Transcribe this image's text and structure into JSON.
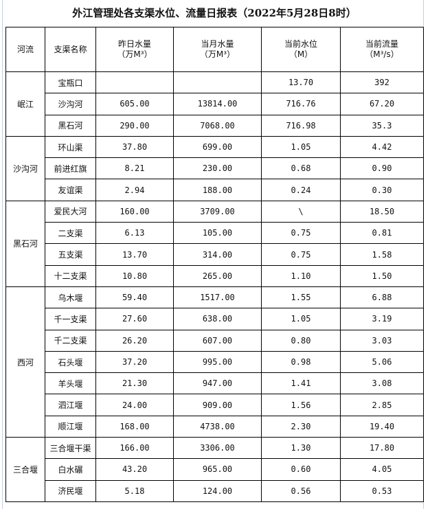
{
  "title": "外江管理处各支渠水位、流量日报表（2022年5月28日8时）",
  "headers": [
    {
      "line1": "河流",
      "line2": ""
    },
    {
      "line1": "支渠名称",
      "line2": ""
    },
    {
      "line1": "昨日水量",
      "line2": "（万M³）"
    },
    {
      "line1": "当月水量",
      "line2": "（万M³）"
    },
    {
      "line1": "当前水位",
      "line2": "（M）"
    },
    {
      "line1": "当前流量",
      "line2": "（M³/s）"
    }
  ],
  "groups": [
    {
      "river": "岷江",
      "rows": [
        [
          "宝瓶口",
          "",
          "",
          "13.70",
          "392"
        ],
        [
          "沙沟河",
          "605.00",
          "13814.00",
          "716.76",
          "67.20"
        ],
        [
          "黑石河",
          "290.00",
          "7068.00",
          "716.98",
          "35.3"
        ]
      ]
    },
    {
      "river": "沙沟河",
      "rows": [
        [
          "环山渠",
          "37.80",
          "699.00",
          "1.05",
          "4.42"
        ],
        [
          "前进红旗",
          "8.21",
          "230.00",
          "0.68",
          "0.90"
        ],
        [
          "友谊渠",
          "2.94",
          "188.00",
          "0.24",
          "0.30"
        ]
      ]
    },
    {
      "river": "黑石河",
      "rows": [
        [
          "爱民大河",
          "160.00",
          "3709.00",
          "\\",
          "18.50"
        ],
        [
          "二支渠",
          "6.13",
          "105.00",
          "0.75",
          "0.81"
        ],
        [
          "五支渠",
          "13.70",
          "314.00",
          "0.75",
          "1.58"
        ],
        [
          "十二支渠",
          "10.80",
          "265.00",
          "1.10",
          "1.50"
        ]
      ]
    },
    {
      "river": "西河",
      "rows": [
        [
          "乌木堰",
          "59.40",
          "1517.00",
          "1.55",
          "6.88"
        ],
        [
          "千一支渠",
          "27.60",
          "638.00",
          "1.05",
          "3.19"
        ],
        [
          "千二支渠",
          "26.20",
          "607.00",
          "0.80",
          "3.03"
        ],
        [
          "石头堰",
          "37.20",
          "995.00",
          "0.98",
          "5.06"
        ],
        [
          "羊头堰",
          "21.30",
          "947.00",
          "1.41",
          "3.08"
        ],
        [
          "泗江堰",
          "24.00",
          "909.00",
          "1.56",
          "2.85"
        ],
        [
          "顺江堰",
          "168.00",
          "4738.00",
          "2.30",
          "19.40"
        ]
      ]
    },
    {
      "river": "三合堰",
      "rows": [
        [
          "三合堰干渠",
          "166.00",
          "3306.00",
          "1.30",
          "17.80"
        ],
        [
          "白水碾",
          "43.20",
          "965.00",
          "0.60",
          "4.05"
        ],
        [
          "济民堰",
          "5.18",
          "124.00",
          "0.56",
          "0.53"
        ]
      ]
    }
  ]
}
